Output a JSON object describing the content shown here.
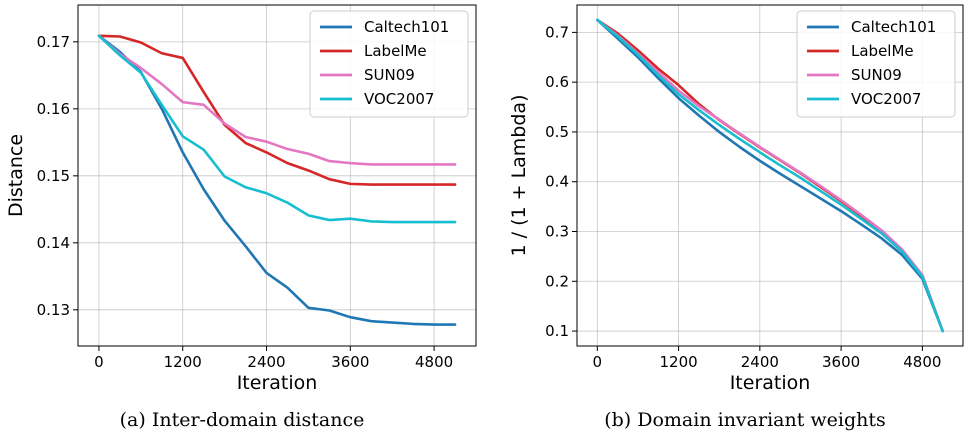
{
  "chart_data": [
    {
      "type": "line",
      "caption": "(a) Inter-domain distance",
      "xlabel": "Iteration",
      "ylabel": "Distance",
      "xlim": [
        -300,
        5400
      ],
      "ylim": [
        0.1246,
        0.1755
      ],
      "xticks": [
        0,
        1200,
        2400,
        3600,
        4800
      ],
      "xtick_labels": [
        "0",
        "1200",
        "2400",
        "3600",
        "4800"
      ],
      "yticks": [
        0.13,
        0.14,
        0.15,
        0.16,
        0.17
      ],
      "ytick_labels": [
        "0.13",
        "0.14",
        "0.15",
        "0.16",
        "0.17"
      ],
      "grid": true,
      "legend_position": "top-right",
      "series": [
        {
          "name": "Caltech101",
          "color": "#1f77b4",
          "x": [
            0,
            300,
            600,
            900,
            1200,
            1500,
            1800,
            2100,
            2400,
            2700,
            3000,
            3300,
            3600,
            3900,
            4200,
            4500,
            4800,
            5100
          ],
          "y": [
            0.1709,
            0.1685,
            0.1655,
            0.16,
            0.1535,
            0.148,
            0.1433,
            0.1395,
            0.1355,
            0.1333,
            0.1303,
            0.1299,
            0.1289,
            0.1283,
            0.1281,
            0.1279,
            0.1278,
            0.1278
          ]
        },
        {
          "name": "LabelMe",
          "color": "#d62728",
          "x": [
            0,
            300,
            600,
            900,
            1200,
            1500,
            1800,
            2100,
            2400,
            2700,
            3000,
            3300,
            3600,
            3900,
            4200,
            4500,
            4800,
            5100
          ],
          "y": [
            0.1709,
            0.1708,
            0.1699,
            0.1683,
            0.1676,
            0.1625,
            0.1576,
            0.1549,
            0.1535,
            0.1519,
            0.1508,
            0.1495,
            0.1488,
            0.1487,
            0.1487,
            0.1487,
            0.1487,
            0.1487
          ]
        },
        {
          "name": "SUN09",
          "color": "#e377c2",
          "x": [
            0,
            300,
            600,
            900,
            1200,
            1500,
            1800,
            2100,
            2400,
            2700,
            3000,
            3300,
            3600,
            3900,
            4200,
            4500,
            4800,
            5100
          ],
          "y": [
            0.1709,
            0.1682,
            0.1661,
            0.1637,
            0.161,
            0.1606,
            0.1578,
            0.1558,
            0.1551,
            0.154,
            0.1533,
            0.1522,
            0.1519,
            0.1517,
            0.1517,
            0.1517,
            0.1517,
            0.1517
          ]
        },
        {
          "name": "VOC2007",
          "color": "#17becf",
          "x": [
            0,
            300,
            600,
            900,
            1200,
            1500,
            1800,
            2100,
            2400,
            2700,
            3000,
            3300,
            3600,
            3900,
            4200,
            4500,
            4800,
            5100
          ],
          "y": [
            0.1709,
            0.168,
            0.1654,
            0.1606,
            0.1559,
            0.1539,
            0.1499,
            0.1483,
            0.1474,
            0.146,
            0.1441,
            0.1434,
            0.1436,
            0.1432,
            0.1431,
            0.1431,
            0.1431,
            0.1431
          ]
        }
      ]
    },
    {
      "type": "line",
      "caption": "(b) Domain invariant weights",
      "xlabel": "Iteration",
      "ylabel": "1 / (1 + Lambda)",
      "xlim": [
        -300,
        5400
      ],
      "ylim": [
        0.07,
        0.755
      ],
      "xticks": [
        0,
        1200,
        2400,
        3600,
        4800
      ],
      "xtick_labels": [
        "0",
        "1200",
        "2400",
        "3600",
        "4800"
      ],
      "yticks": [
        0.1,
        0.2,
        0.3,
        0.4,
        0.5,
        0.6,
        0.7
      ],
      "ytick_labels": [
        "0.1",
        "0.2",
        "0.3",
        "0.4",
        "0.5",
        "0.6",
        "0.7"
      ],
      "grid": true,
      "legend_position": "top-right",
      "series": [
        {
          "name": "Caltech101",
          "color": "#1f77b4",
          "x": [
            0,
            300,
            600,
            900,
            1200,
            1500,
            1800,
            2100,
            2400,
            2700,
            3000,
            3300,
            3600,
            3900,
            4200,
            4500,
            4800,
            5100
          ],
          "y": [
            0.725,
            0.688,
            0.65,
            0.608,
            0.568,
            0.533,
            0.5,
            0.47,
            0.442,
            0.416,
            0.391,
            0.366,
            0.341,
            0.314,
            0.286,
            0.253,
            0.205,
            0.1
          ]
        },
        {
          "name": "LabelMe",
          "color": "#d62728",
          "x": [
            0,
            300,
            600,
            900,
            1200,
            1500,
            1800,
            2100,
            2400,
            2700,
            3000,
            3300,
            3600,
            3900,
            4200,
            4500,
            4800,
            5100
          ],
          "y": [
            0.725,
            0.698,
            0.664,
            0.627,
            0.594,
            0.556,
            0.524,
            0.496,
            0.469,
            0.443,
            0.417,
            0.389,
            0.361,
            0.331,
            0.3,
            0.263,
            0.212,
            0.1
          ]
        },
        {
          "name": "SUN09",
          "color": "#e377c2",
          "x": [
            0,
            300,
            600,
            900,
            1200,
            1500,
            1800,
            2100,
            2400,
            2700,
            3000,
            3300,
            3600,
            3900,
            4200,
            4500,
            4800,
            5100
          ],
          "y": [
            0.725,
            0.694,
            0.658,
            0.62,
            0.583,
            0.552,
            0.525,
            0.497,
            0.47,
            0.444,
            0.418,
            0.391,
            0.363,
            0.333,
            0.302,
            0.264,
            0.212,
            0.1
          ]
        },
        {
          "name": "VOC2007",
          "color": "#17becf",
          "x": [
            0,
            300,
            600,
            900,
            1200,
            1500,
            1800,
            2100,
            2400,
            2700,
            3000,
            3300,
            3600,
            3900,
            4200,
            4500,
            4800,
            5100
          ],
          "y": [
            0.725,
            0.692,
            0.655,
            0.614,
            0.576,
            0.544,
            0.514,
            0.486,
            0.459,
            0.433,
            0.408,
            0.381,
            0.354,
            0.325,
            0.296,
            0.26,
            0.209,
            0.1
          ]
        }
      ]
    }
  ]
}
